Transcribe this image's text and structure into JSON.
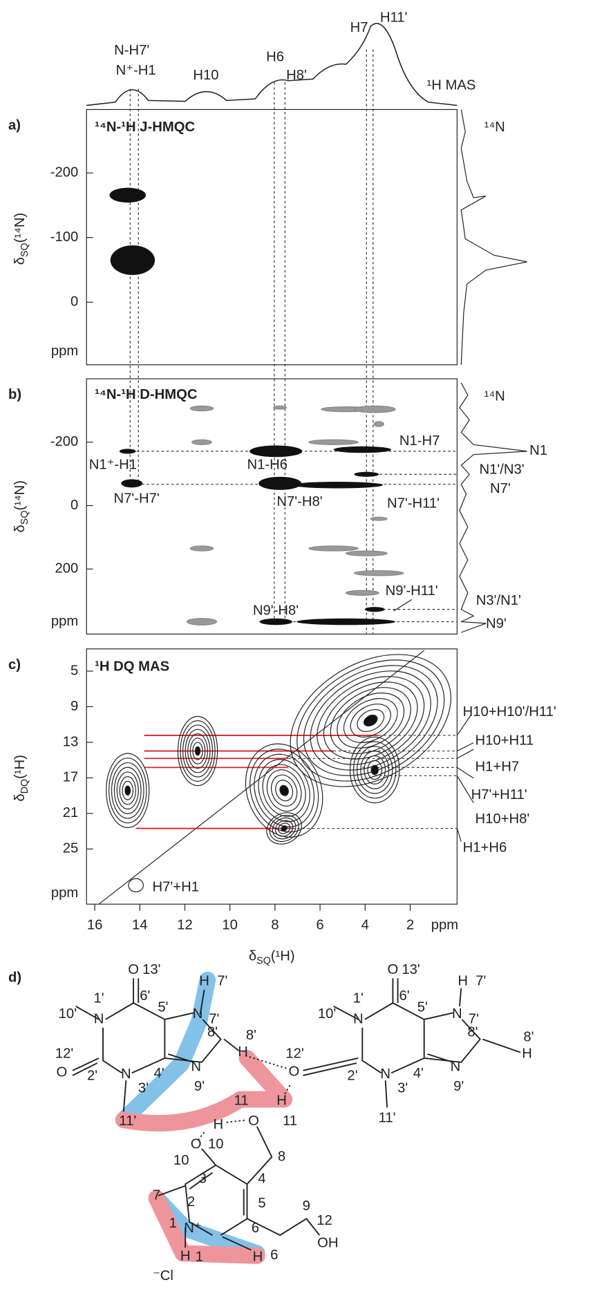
{
  "spectrum_1h": {
    "peak_labels": [
      "N-H7'",
      "N⁺-H1",
      "H10",
      "H6",
      "H8'",
      "H7",
      "H11'"
    ],
    "name": "¹H MAS"
  },
  "panels": [
    {
      "letter": "a)",
      "title": "¹⁴N-¹H J-HMQC",
      "y_axis": {
        "symbol": "δ",
        "subscript": "SQ",
        "nucleus": "(¹⁴N)",
        "ticks": [
          -200,
          -100,
          0
        ],
        "unit": "ppm"
      },
      "projection_label": "¹⁴N",
      "annotations": []
    },
    {
      "letter": "b)",
      "title": "¹⁴N-¹H D-HMQC",
      "y_axis": {
        "symbol": "δ",
        "subscript": "SQ",
        "nucleus": "(¹⁴N)",
        "ticks": [
          -200,
          0,
          200
        ],
        "unit": "ppm"
      },
      "projection_label": "¹⁴N",
      "annotations": [
        "N1⁺-H1",
        "N7'-H7'",
        "N1-H6",
        "N7'-H8'",
        "N1-H7",
        "N7'-H11'",
        "N9'-H8'",
        "N9'-H11'",
        "N1",
        "N1'/N3'",
        "N7'",
        "N3'/N1'",
        "N9'"
      ]
    },
    {
      "letter": "c)",
      "title": "¹H DQ MAS",
      "y_axis": {
        "symbol": "δ",
        "subscript": "DQ",
        "nucleus": "(¹H)",
        "ticks": [
          5,
          9,
          13,
          17,
          21,
          25
        ],
        "unit": "ppm"
      },
      "annotations": [
        "H7'+H1",
        "H10+H10'/H11'",
        "H10+H11",
        "H1+H7",
        "H7'+H11'",
        "H10+H8'",
        "H1+H6"
      ]
    }
  ],
  "x_axis": {
    "symbol": "δ",
    "subscript": "SQ",
    "nucleus": "(¹H)",
    "ticks": [
      16,
      14,
      12,
      10,
      8,
      6,
      4,
      2
    ],
    "unit": "ppm"
  },
  "structure": {
    "letter": "d)",
    "labels": [
      "O",
      "13'",
      "1'",
      "10'",
      "6'",
      "5'",
      "N",
      "7'",
      "N",
      "H",
      "7'",
      "12'",
      "O",
      "2'",
      "N",
      "3'",
      "4'",
      "N",
      "9'",
      "8'",
      "8'",
      "H",
      "11'",
      "O",
      "12'",
      "H",
      "O",
      "11",
      "11",
      "H",
      "10",
      "O",
      "8",
      "10",
      "3",
      "4",
      "2",
      "5",
      "7",
      "N⁺",
      "1",
      "6",
      "H",
      "1",
      "H",
      "6",
      "⁻Cl",
      "9",
      "12",
      "OH",
      "O",
      "13'",
      "1'",
      "10'",
      "6'",
      "5'",
      "N",
      "H",
      "7'",
      "N",
      "7'",
      "8'",
      "8'",
      "H",
      "2'",
      "N",
      "3'",
      "4'",
      "N",
      "9'",
      "11'"
    ]
  }
}
